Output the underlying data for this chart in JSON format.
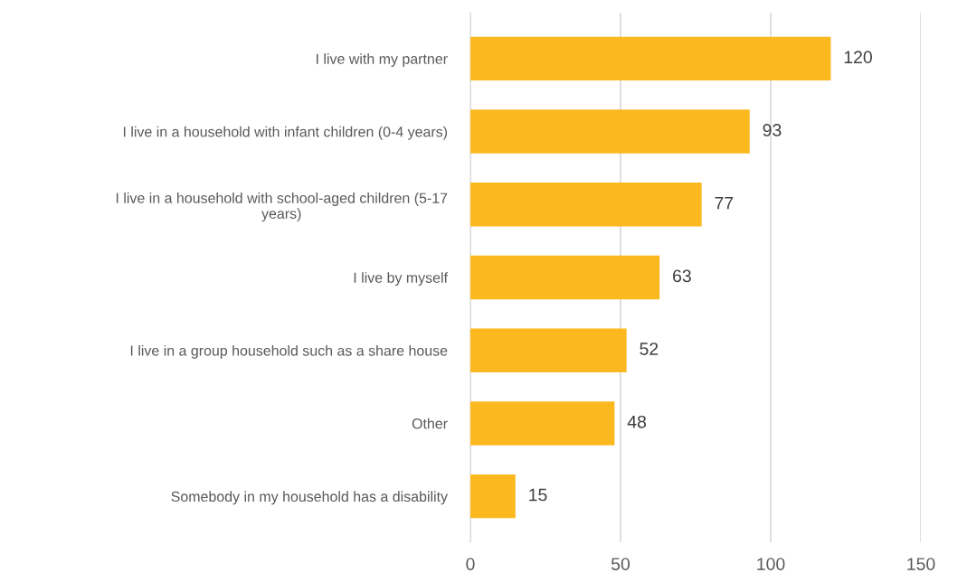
{
  "chart_data": {
    "type": "bar",
    "orientation": "horizontal",
    "categories": [
      "I live with my partner",
      "I live in a household with infant children (0-4 years)",
      "I live in a household with school-aged children (5-17 years)",
      "I live by myself",
      "I live in a group household such as a share house",
      "Other",
      "Somebody in my household has a disability"
    ],
    "values": [
      120,
      93,
      77,
      63,
      52,
      48,
      15
    ],
    "color": "#fbb81f",
    "xlim": [
      0,
      150
    ],
    "xticks": [
      0,
      50,
      100,
      150
    ],
    "grid": "x",
    "data_labels": true
  }
}
